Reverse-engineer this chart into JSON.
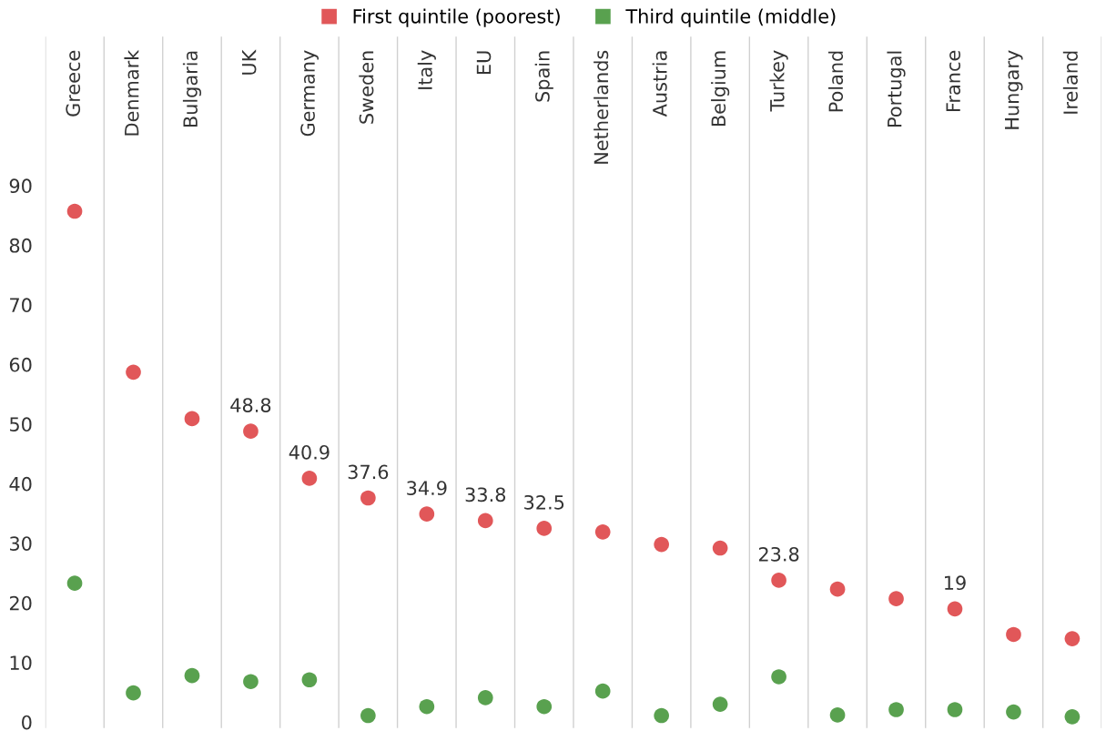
{
  "chart_data": {
    "type": "scatter",
    "categories": [
      "Greece",
      "Denmark",
      "Bulgaria",
      "UK",
      "Germany",
      "Sweden",
      "Italy",
      "EU",
      "Spain",
      "Netherlands",
      "Austria",
      "Belgium",
      "Turkey",
      "Poland",
      "Portugal",
      "France",
      "Hungary",
      "Ireland"
    ],
    "series": [
      {
        "name": "First quintile (poorest)",
        "color": "#e15759",
        "values": [
          85.7,
          58.7,
          50.9,
          48.8,
          40.9,
          37.6,
          34.9,
          33.8,
          32.5,
          31.9,
          29.8,
          29.2,
          23.8,
          22.3,
          20.7,
          19,
          14.7,
          14.0
        ],
        "value_labels": [
          null,
          null,
          null,
          "48.8",
          "40.9",
          "37.6",
          "34.9",
          "33.8",
          "32.5",
          null,
          null,
          null,
          "23.8",
          null,
          null,
          "19",
          null,
          null
        ]
      },
      {
        "name": "Third quintile (middle)",
        "color": "#59a14f",
        "values": [
          23.3,
          4.9,
          7.8,
          6.8,
          7.1,
          1.1,
          2.6,
          4.1,
          2.6,
          5.2,
          1.1,
          3.0,
          7.6,
          1.2,
          2.1,
          2.1,
          1.7,
          0.9
        ]
      }
    ],
    "ylim": [
      -1,
      115
    ],
    "yticks": [
      0,
      10,
      20,
      30,
      40,
      50,
      60,
      70,
      80,
      90
    ],
    "grid": "x",
    "legend": "top",
    "marker": "circle"
  }
}
